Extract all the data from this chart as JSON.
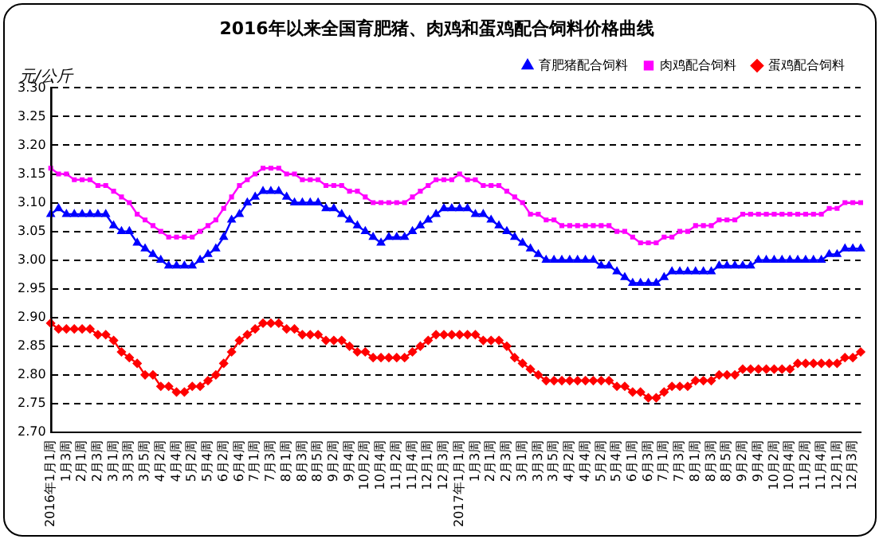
{
  "chart_data": {
    "type": "line",
    "title": "2016年以来全国育肥猪、肉鸡和蛋鸡配合饲料价格曲线",
    "ylabel": "元/公斤",
    "categories": [
      "2016年1月1周",
      null,
      "1月3周",
      null,
      "2月1周",
      null,
      "2月3周",
      null,
      "3月1周",
      null,
      "3月3周",
      null,
      "3月5周",
      null,
      "4月2周",
      null,
      "4月4周",
      null,
      "5月2周",
      null,
      "5月4周",
      null,
      "6月2周",
      null,
      "6月4周",
      null,
      "7月1周",
      null,
      "7月3周",
      null,
      "8月1周",
      null,
      "8月3周",
      null,
      "8月5周",
      null,
      "9月2周",
      null,
      "9月4周",
      null,
      "10月2周",
      null,
      "10月4周",
      null,
      "11月2周",
      null,
      "11月4周",
      null,
      "12月1周",
      null,
      "12月3周",
      null,
      "2017年1月1周",
      null,
      "1月3周",
      null,
      "2月1周",
      null,
      "2月3周",
      null,
      "3月1周",
      null,
      "3月3周",
      null,
      "3月5周",
      null,
      "4月2周",
      null,
      "4月4周",
      null,
      "5月2周",
      null,
      "5月4周",
      null,
      "6月1周",
      null,
      "6月3周",
      null,
      "7月1周",
      null,
      "7月3周",
      null,
      "8月1周",
      null,
      "8月3周",
      null,
      "8月5周",
      null,
      "9月2周",
      null,
      "9月4周",
      null,
      "10月2周",
      null,
      "10月4周",
      null,
      "11月2周",
      null,
      "11月4周",
      null,
      "12月1周",
      null,
      "12月3周",
      null
    ],
    "series": [
      {
        "name": "育肥猪配合饲料",
        "color": "#0000ff",
        "marker": "triangle",
        "values": [
          3.08,
          3.09,
          3.08,
          3.08,
          3.08,
          3.08,
          3.08,
          3.08,
          3.06,
          3.05,
          3.05,
          3.03,
          3.02,
          3.01,
          3.0,
          2.99,
          2.99,
          2.99,
          2.99,
          3.0,
          3.01,
          3.02,
          3.04,
          3.07,
          3.08,
          3.1,
          3.11,
          3.12,
          3.12,
          3.12,
          3.11,
          3.1,
          3.1,
          3.1,
          3.1,
          3.09,
          3.09,
          3.08,
          3.07,
          3.06,
          3.05,
          3.04,
          3.03,
          3.04,
          3.04,
          3.04,
          3.05,
          3.06,
          3.07,
          3.08,
          3.09,
          3.09,
          3.09,
          3.09,
          3.08,
          3.08,
          3.07,
          3.06,
          3.05,
          3.04,
          3.03,
          3.02,
          3.01,
          3.0,
          3.0,
          3.0,
          3.0,
          3.0,
          3.0,
          3.0,
          2.99,
          2.99,
          2.98,
          2.97,
          2.96,
          2.96,
          2.96,
          2.96,
          2.97,
          2.98,
          2.98,
          2.98,
          2.98,
          2.98,
          2.98,
          2.99,
          2.99,
          2.99,
          2.99,
          2.99,
          3.0,
          3.0,
          3.0,
          3.0,
          3.0,
          3.0,
          3.0,
          3.0,
          3.0,
          3.01,
          3.01,
          3.02,
          3.02,
          3.02
        ]
      },
      {
        "name": "肉鸡配合饲料",
        "color": "#ff00ff",
        "marker": "square",
        "values": [
          3.16,
          3.15,
          3.15,
          3.14,
          3.14,
          3.14,
          3.13,
          3.13,
          3.12,
          3.11,
          3.1,
          3.08,
          3.07,
          3.06,
          3.05,
          3.04,
          3.04,
          3.04,
          3.04,
          3.05,
          3.06,
          3.07,
          3.09,
          3.11,
          3.13,
          3.14,
          3.15,
          3.16,
          3.16,
          3.16,
          3.15,
          3.15,
          3.14,
          3.14,
          3.14,
          3.13,
          3.13,
          3.13,
          3.12,
          3.12,
          3.11,
          3.1,
          3.1,
          3.1,
          3.1,
          3.1,
          3.11,
          3.12,
          3.13,
          3.14,
          3.14,
          3.14,
          3.15,
          3.14,
          3.14,
          3.13,
          3.13,
          3.13,
          3.12,
          3.11,
          3.1,
          3.08,
          3.08,
          3.07,
          3.07,
          3.06,
          3.06,
          3.06,
          3.06,
          3.06,
          3.06,
          3.06,
          3.05,
          3.05,
          3.04,
          3.03,
          3.03,
          3.03,
          3.04,
          3.04,
          3.05,
          3.05,
          3.06,
          3.06,
          3.06,
          3.07,
          3.07,
          3.07,
          3.08,
          3.08,
          3.08,
          3.08,
          3.08,
          3.08,
          3.08,
          3.08,
          3.08,
          3.08,
          3.08,
          3.09,
          3.09,
          3.1,
          3.1,
          3.1
        ]
      },
      {
        "name": "蛋鸡配合饲料",
        "color": "#ff0000",
        "marker": "diamond",
        "values": [
          2.89,
          2.88,
          2.88,
          2.88,
          2.88,
          2.88,
          2.87,
          2.87,
          2.86,
          2.84,
          2.83,
          2.82,
          2.8,
          2.8,
          2.78,
          2.78,
          2.77,
          2.77,
          2.78,
          2.78,
          2.79,
          2.8,
          2.82,
          2.84,
          2.86,
          2.87,
          2.88,
          2.89,
          2.89,
          2.89,
          2.88,
          2.88,
          2.87,
          2.87,
          2.87,
          2.86,
          2.86,
          2.86,
          2.85,
          2.84,
          2.84,
          2.83,
          2.83,
          2.83,
          2.83,
          2.83,
          2.84,
          2.85,
          2.86,
          2.87,
          2.87,
          2.87,
          2.87,
          2.87,
          2.87,
          2.86,
          2.86,
          2.86,
          2.85,
          2.83,
          2.82,
          2.81,
          2.8,
          2.79,
          2.79,
          2.79,
          2.79,
          2.79,
          2.79,
          2.79,
          2.79,
          2.79,
          2.78,
          2.78,
          2.77,
          2.77,
          2.76,
          2.76,
          2.77,
          2.78,
          2.78,
          2.78,
          2.79,
          2.79,
          2.79,
          2.8,
          2.8,
          2.8,
          2.81,
          2.81,
          2.81,
          2.81,
          2.81,
          2.81,
          2.81,
          2.82,
          2.82,
          2.82,
          2.82,
          2.82,
          2.82,
          2.83,
          2.83,
          2.84
        ]
      }
    ],
    "ylim": [
      2.7,
      3.3
    ],
    "yticks": [
      {
        "value": 2.7,
        "label": "2.70"
      },
      {
        "value": 2.75,
        "label": "2.75"
      },
      {
        "value": 2.8,
        "label": "2.80"
      },
      {
        "value": 2.85,
        "label": "2.85"
      },
      {
        "value": 2.9,
        "label": "2.90"
      },
      {
        "value": 2.95,
        "label": "2.95"
      },
      {
        "value": 3.0,
        "label": "3.00"
      },
      {
        "value": 3.05,
        "label": "3.05"
      },
      {
        "value": 3.1,
        "label": "3.10"
      },
      {
        "value": 3.15,
        "label": "3.15"
      },
      {
        "value": 3.2,
        "label": "3.20"
      },
      {
        "value": 3.25,
        "label": "3.25"
      },
      {
        "value": 3.3,
        "label": "3.30"
      }
    ],
    "grid": "y",
    "legend": "top right",
    "line_style": "solid"
  }
}
